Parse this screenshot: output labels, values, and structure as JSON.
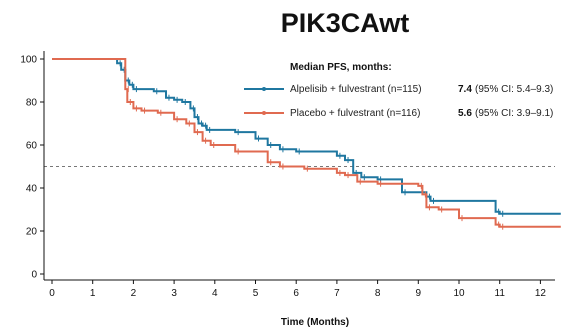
{
  "chart_data": {
    "type": "line",
    "step": true,
    "title": "PIK3CAwt",
    "xlabel": "Time (Months)",
    "ylabel": "",
    "xlim": [
      0,
      12.5
    ],
    "ylim": [
      0,
      100
    ],
    "xticks": [
      "0",
      "1",
      "2",
      "3",
      "4",
      "5",
      "6",
      "7",
      "8",
      "9",
      "10",
      "11",
      "12"
    ],
    "yticks": [
      "0",
      "20",
      "40",
      "60",
      "80",
      "100"
    ],
    "reference_line_y": 50,
    "legend": {
      "title": "Median PFS, months:",
      "placement": "top-right"
    },
    "series": [
      {
        "name": "Alpelisib + fulvestrant (n=115)",
        "median": "7.4",
        "ci": "(95% CI: 5.4–9.3)",
        "color": "#1f77a0",
        "x": [
          0,
          1.6,
          1.7,
          1.8,
          1.9,
          2.0,
          2.5,
          2.8,
          3.0,
          3.2,
          3.4,
          3.5,
          3.6,
          3.7,
          3.8,
          4.5,
          5.0,
          5.3,
          5.6,
          6.0,
          7.0,
          7.2,
          7.4,
          7.6,
          8.0,
          8.6,
          9.2,
          9.3,
          10.9,
          11.0,
          12.5
        ],
        "y": [
          100,
          98,
          95,
          90,
          88,
          86,
          85,
          82,
          81,
          80,
          77,
          73,
          70,
          69,
          67,
          66,
          63,
          60,
          58,
          57,
          55,
          53,
          47,
          45,
          44,
          38,
          36,
          34,
          29,
          28,
          28
        ]
      },
      {
        "name": "Placebo + fulvestrant (n=116)",
        "median": "5.6",
        "ci": "(95% CI: 3.9–9.1)",
        "color": "#e06a50",
        "x": [
          0,
          1.8,
          1.85,
          2.0,
          2.2,
          2.6,
          3.0,
          3.3,
          3.5,
          3.7,
          3.9,
          4.5,
          5.3,
          5.6,
          6.2,
          7.0,
          7.2,
          7.5,
          8.0,
          9.0,
          9.1,
          9.2,
          9.5,
          10.0,
          10.9,
          11.0,
          12.5
        ],
        "y": [
          100,
          86,
          80,
          77,
          76,
          75,
          72,
          70,
          66,
          62,
          60,
          57,
          52,
          50,
          49,
          47,
          46,
          43,
          42,
          41,
          37,
          31,
          30,
          26,
          23,
          22,
          22
        ]
      }
    ]
  }
}
